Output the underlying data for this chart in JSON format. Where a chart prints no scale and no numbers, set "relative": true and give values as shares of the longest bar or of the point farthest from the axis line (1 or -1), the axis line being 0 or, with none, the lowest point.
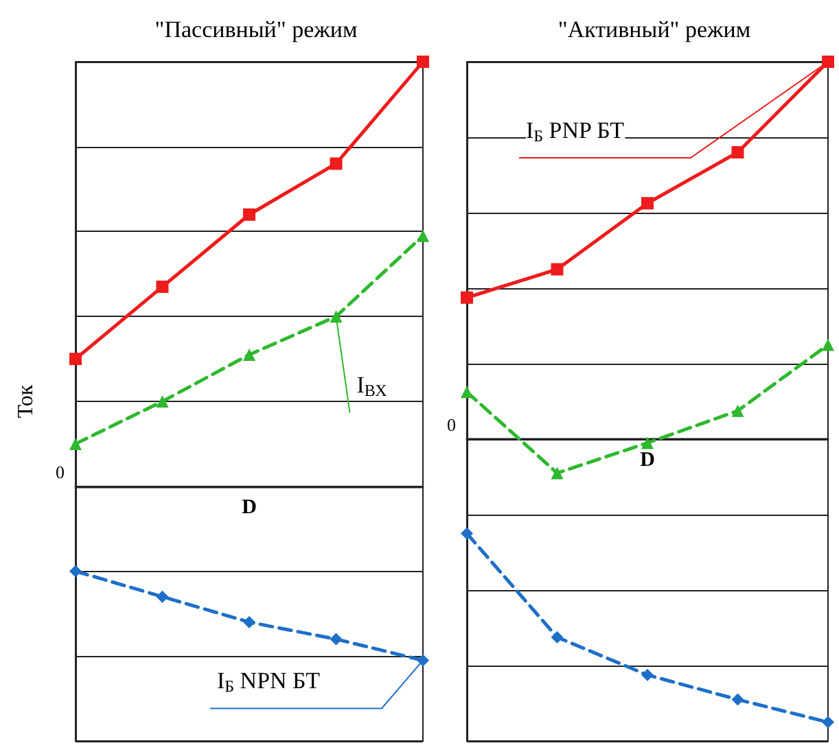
{
  "chart_data": [
    {
      "type": "line",
      "title": "\"Пассивный\" режим",
      "xlabel": "D",
      "ylabel": "Ток",
      "categories": [
        null,
        null,
        null,
        null,
        null
      ],
      "relative": true,
      "grid": true,
      "annotations": [
        "0"
      ],
      "series": [
        {
          "color": "#ee1c1c",
          "marker": "square",
          "line_style": "solid",
          "values": [
            0.3,
            0.47,
            0.64,
            0.76,
            1.0
          ]
        },
        {
          "name": "I$_{ВХ}$",
          "color": "#2eb82e",
          "marker": "triangle",
          "line_style": "dashed",
          "values": [
            0.1,
            0.2,
            0.31,
            0.4,
            0.59
          ]
        },
        {
          "name": "I$_{Б}$ NPN БТ",
          "color": "#1e6fc8",
          "marker": "diamond",
          "line_style": "dashed",
          "values": [
            -0.2,
            -0.26,
            -0.32,
            -0.36,
            -0.41
          ]
        }
      ]
    },
    {
      "type": "line",
      "title": "\"Активный\" режим",
      "xlabel": "D",
      "categories": [
        null,
        null,
        null,
        null,
        null
      ],
      "relative": true,
      "grid": true,
      "annotations": [
        "0"
      ],
      "series": [
        {
          "name": "I$_{Б}$ PNP БТ",
          "color": "#ee1c1c",
          "marker": "square",
          "line_style": "solid",
          "values": [
            0.375,
            0.45,
            0.625,
            0.76,
            1.0
          ]
        },
        {
          "color": "#2eb82e",
          "marker": "triangle",
          "line_style": "dashed",
          "values": [
            0.125,
            -0.09,
            -0.01,
            0.075,
            0.25
          ]
        },
        {
          "color": "#1e6fc8",
          "marker": "diamond",
          "line_style": "dashed",
          "values": [
            -0.25,
            -0.525,
            -0.625,
            -0.69,
            -0.75
          ]
        }
      ]
    }
  ]
}
